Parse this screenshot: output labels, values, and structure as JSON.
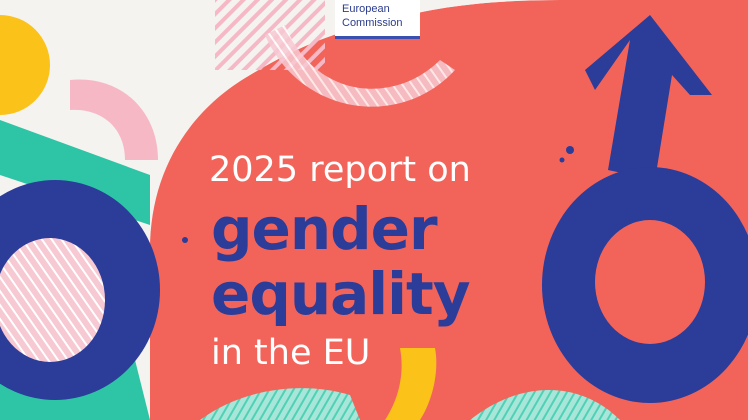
{
  "logo": {
    "line1": "European",
    "line2": "Commission"
  },
  "title": {
    "line1": "2025 report on",
    "line2": "gender",
    "line3": "equality",
    "line4": "in the EU"
  },
  "colors": {
    "background": "#f4f3ef",
    "coral": "#f2645a",
    "navy": "#2b3c99",
    "teal": "#2ec4a6",
    "yellow": "#fbc21a",
    "pink": "#f7b8c6",
    "white": "#ffffff"
  }
}
